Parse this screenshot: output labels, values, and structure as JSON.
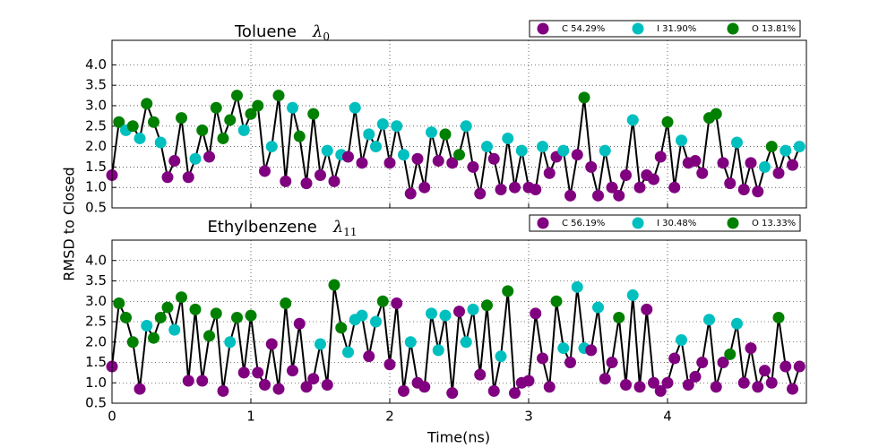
{
  "figure": {
    "xlabel": "Time(ns)",
    "ylabel": "RMSD to Closed"
  },
  "chart_data": [
    {
      "type": "line-scatter",
      "title": "Toluene",
      "title_symbol": "λ",
      "title_subscript": "0",
      "line_color": "#000000",
      "series": [
        {
          "name": "C 54.29%",
          "color": "#800080"
        },
        {
          "name": "I 31.90%",
          "color": "#00bfbf"
        },
        {
          "name": "O 13.81%",
          "color": "#008000"
        }
      ],
      "x": [
        0,
        0.05,
        0.1,
        0.15,
        0.2,
        0.25,
        0.3,
        0.35,
        0.4,
        0.45,
        0.5,
        0.55,
        0.6,
        0.65,
        0.7,
        0.75,
        0.8,
        0.85,
        0.9,
        0.95,
        1,
        1.05,
        1.1,
        1.15,
        1.2,
        1.25,
        1.3,
        1.35,
        1.4,
        1.45,
        1.5,
        1.55,
        1.6,
        1.65,
        1.7,
        1.75,
        1.8,
        1.85,
        1.9,
        1.95,
        2,
        2.05,
        2.1,
        2.15,
        2.2,
        2.25,
        2.3,
        2.35,
        2.4,
        2.45,
        2.5,
        2.55,
        2.6,
        2.65,
        2.7,
        2.75,
        2.8,
        2.85,
        2.9,
        2.95,
        3,
        3.05,
        3.1,
        3.15,
        3.2,
        3.25,
        3.3,
        3.35,
        3.4,
        3.45,
        3.5,
        3.55,
        3.6,
        3.65,
        3.7,
        3.75,
        3.8,
        3.85,
        3.9,
        3.95,
        4,
        4.05,
        4.1,
        4.15,
        4.2,
        4.25,
        4.3,
        4.35,
        4.4,
        4.45,
        4.5,
        4.55,
        4.6,
        4.65,
        4.7,
        4.75,
        4.8,
        4.85,
        4.9,
        4.95
      ],
      "values": [
        1.3,
        2.6,
        2.4,
        2.5,
        2.2,
        3.05,
        2.6,
        2.1,
        1.25,
        1.65,
        2.7,
        1.25,
        1.7,
        2.4,
        1.75,
        2.95,
        2.2,
        2.65,
        3.25,
        2.4,
        2.8,
        3.0,
        1.4,
        2.0,
        3.25,
        1.15,
        2.95,
        2.25,
        1.1,
        2.8,
        1.3,
        1.9,
        1.15,
        1.8,
        1.75,
        2.95,
        1.6,
        2.3,
        2.0,
        2.55,
        1.6,
        2.5,
        1.8,
        0.85,
        1.7,
        1.0,
        2.35,
        1.65,
        2.3,
        1.6,
        1.8,
        2.5,
        1.5,
        0.85,
        2.0,
        1.7,
        0.95,
        2.2,
        1.0,
        1.9,
        1.0,
        0.95,
        2.0,
        1.35,
        1.75,
        1.9,
        0.8,
        1.8,
        3.2,
        1.5,
        0.8,
        1.9,
        1.0,
        0.8,
        1.3,
        2.65,
        1.0,
        1.3,
        1.2,
        1.75,
        2.6,
        1.0,
        2.15,
        1.6,
        1.65,
        1.35,
        2.7,
        2.8,
        1.6,
        1.1,
        2.1,
        0.95,
        1.6,
        0.9,
        1.5,
        2.0,
        1.35,
        1.9,
        1.55,
        2.0
      ],
      "states": [
        0,
        2,
        1,
        2,
        1,
        2,
        2,
        1,
        0,
        0,
        2,
        0,
        1,
        2,
        0,
        2,
        2,
        2,
        2,
        1,
        2,
        2,
        0,
        1,
        2,
        0,
        1,
        2,
        0,
        2,
        0,
        1,
        0,
        1,
        0,
        1,
        0,
        1,
        1,
        1,
        0,
        1,
        1,
        0,
        0,
        0,
        1,
        0,
        2,
        0,
        2,
        1,
        0,
        0,
        1,
        0,
        0,
        1,
        0,
        1,
        0,
        0,
        1,
        0,
        0,
        1,
        0,
        0,
        2,
        0,
        0,
        1,
        0,
        0,
        0,
        1,
        0,
        0,
        0,
        0,
        2,
        0,
        1,
        0,
        0,
        0,
        2,
        2,
        0,
        0,
        1,
        0,
        0,
        0,
        1,
        2,
        0,
        1,
        0,
        1
      ],
      "xlim": [
        0,
        5.0
      ],
      "ylim": [
        0.5,
        4.6
      ],
      "xticks": [
        0,
        1,
        2,
        3,
        4
      ],
      "show_xtick_labels": false,
      "yticks": [
        0.5,
        {
          "value": 1,
          "label": "1.0"
        },
        1.5,
        {
          "value": 2,
          "label": "2.0"
        },
        2.5,
        {
          "value": 3,
          "label": "3.0"
        },
        3.5,
        {
          "value": 4,
          "label": "4.0"
        }
      ],
      "grid": true
    },
    {
      "type": "line-scatter",
      "title": "Ethylbenzene",
      "title_symbol": "λ",
      "title_subscript": "11",
      "line_color": "#000000",
      "series": [
        {
          "name": "C 56.19%",
          "color": "#800080"
        },
        {
          "name": "I 30.48%",
          "color": "#00bfbf"
        },
        {
          "name": "O 13.33%",
          "color": "#008000"
        }
      ],
      "x": [
        0,
        0.05,
        0.1,
        0.15,
        0.2,
        0.25,
        0.3,
        0.35,
        0.4,
        0.45,
        0.5,
        0.55,
        0.6,
        0.65,
        0.7,
        0.75,
        0.8,
        0.85,
        0.9,
        0.95,
        1,
        1.05,
        1.1,
        1.15,
        1.2,
        1.25,
        1.3,
        1.35,
        1.4,
        1.45,
        1.5,
        1.55,
        1.6,
        1.65,
        1.7,
        1.75,
        1.8,
        1.85,
        1.9,
        1.95,
        2,
        2.05,
        2.1,
        2.15,
        2.2,
        2.25,
        2.3,
        2.35,
        2.4,
        2.45,
        2.5,
        2.55,
        2.6,
        2.65,
        2.7,
        2.75,
        2.8,
        2.85,
        2.9,
        2.95,
        3,
        3.05,
        3.1,
        3.15,
        3.2,
        3.25,
        3.3,
        3.35,
        3.4,
        3.45,
        3.5,
        3.55,
        3.6,
        3.65,
        3.7,
        3.75,
        3.8,
        3.85,
        3.9,
        3.95,
        4,
        4.05,
        4.1,
        4.15,
        4.2,
        4.25,
        4.3,
        4.35,
        4.4,
        4.45,
        4.5,
        4.55,
        4.6,
        4.65,
        4.7,
        4.75,
        4.8,
        4.85,
        4.9,
        4.95
      ],
      "values": [
        1.4,
        2.95,
        2.6,
        2.0,
        0.85,
        2.4,
        2.1,
        2.6,
        2.85,
        2.3,
        3.1,
        1.05,
        2.8,
        1.05,
        2.15,
        2.7,
        0.8,
        2.0,
        2.6,
        1.25,
        2.65,
        1.25,
        0.95,
        1.95,
        0.85,
        2.95,
        1.3,
        2.45,
        0.9,
        1.1,
        1.95,
        0.95,
        3.4,
        2.35,
        1.75,
        2.55,
        2.65,
        1.65,
        2.5,
        3.0,
        1.45,
        2.95,
        0.8,
        2.0,
        1.0,
        0.9,
        2.7,
        1.8,
        2.65,
        0.75,
        2.75,
        2.0,
        2.8,
        1.2,
        2.9,
        0.8,
        1.65,
        3.25,
        0.75,
        1.0,
        1.05,
        2.7,
        1.6,
        0.9,
        3.0,
        1.85,
        1.5,
        3.35,
        1.85,
        1.8,
        2.85,
        1.1,
        1.5,
        2.6,
        0.95,
        3.15,
        0.9,
        2.8,
        1.0,
        0.8,
        1.0,
        1.6,
        2.05,
        0.95,
        1.15,
        1.5,
        2.55,
        0.9,
        1.5,
        1.7,
        2.45,
        1.0,
        1.85,
        0.9,
        1.3,
        1.0,
        2.6,
        1.4,
        0.85,
        1.4
      ],
      "states": [
        0,
        2,
        2,
        2,
        0,
        1,
        2,
        2,
        2,
        1,
        2,
        0,
        2,
        0,
        2,
        2,
        0,
        1,
        2,
        0,
        2,
        0,
        0,
        0,
        0,
        2,
        0,
        0,
        0,
        0,
        1,
        0,
        2,
        2,
        1,
        1,
        1,
        0,
        1,
        2,
        0,
        0,
        0,
        1,
        0,
        0,
        1,
        1,
        1,
        0,
        0,
        1,
        1,
        0,
        2,
        0,
        1,
        2,
        0,
        0,
        0,
        0,
        0,
        0,
        2,
        1,
        0,
        1,
        1,
        0,
        1,
        0,
        0,
        2,
        0,
        1,
        0,
        0,
        0,
        0,
        0,
        0,
        1,
        0,
        0,
        0,
        1,
        0,
        0,
        2,
        1,
        0,
        0,
        0,
        0,
        0,
        2,
        0,
        0,
        0
      ],
      "xlim": [
        0,
        5.0
      ],
      "ylim": [
        0.5,
        4.5
      ],
      "xticks": [
        0,
        1,
        2,
        3,
        4
      ],
      "show_xtick_labels": true,
      "yticks": [
        0.5,
        {
          "value": 1,
          "label": "1.0"
        },
        1.5,
        {
          "value": 2,
          "label": "2.0"
        },
        2.5,
        {
          "value": 3,
          "label": "3.0"
        },
        3.5,
        {
          "value": 4,
          "label": "4.0"
        }
      ],
      "grid": true
    }
  ]
}
